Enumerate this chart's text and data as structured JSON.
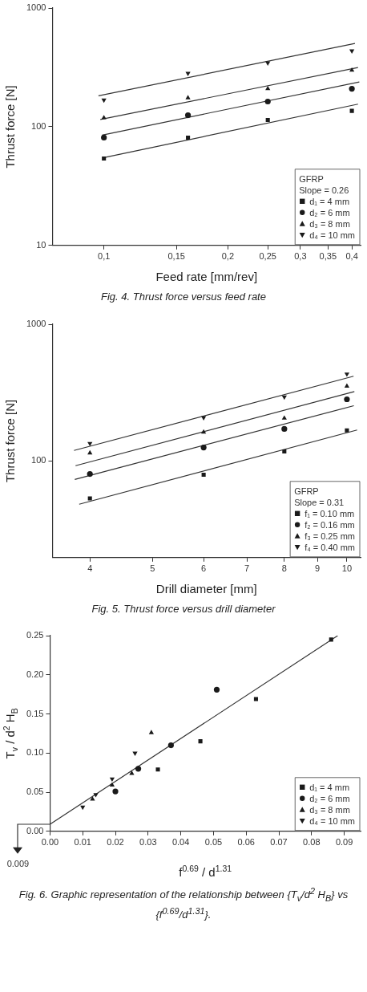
{
  "chart_data": [
    {
      "type": "scatter",
      "title": "Fig. 4. Thrust force versus feed rate",
      "xlabel": "Feed rate [mm/rev]",
      "ylabel": "Thrust force [N]",
      "legend_title": "GFRP",
      "annotations": [
        "Slope = 0.26"
      ],
      "log": "xy",
      "xlim": [
        0.075,
        0.42
      ],
      "ylim": [
        10,
        1000
      ],
      "xticks": [
        {
          "value": 0.1,
          "label": "0,1"
        },
        {
          "value": 0.15,
          "label": "0,15"
        },
        {
          "value": 0.2,
          "label": "0,2"
        },
        {
          "value": 0.25,
          "label": "0,25"
        },
        {
          "value": 0.3,
          "label": "0,3"
        },
        {
          "value": 0.35,
          "label": "0,35"
        },
        {
          "value": 0.4,
          "label": "0,4"
        }
      ],
      "yticks": [
        10,
        100,
        1000
      ],
      "legend": "bottom right",
      "series": [
        {
          "name": "d₁ = 4 mm",
          "color": "#1a1a1a",
          "marker": "square",
          "x": [
            0.1,
            0.16,
            0.25,
            0.4
          ],
          "values": [
            54,
            81,
            114,
            136
          ]
        },
        {
          "name": "d₂ = 6 mm",
          "color": "#1a1a1a",
          "marker": "circle",
          "x": [
            0.1,
            0.16,
            0.25,
            0.4
          ],
          "values": [
            81,
            125,
            163,
            209
          ]
        },
        {
          "name": "d₃ = 8 mm",
          "color": "#1a1a1a",
          "marker": "triangle",
          "x": [
            0.1,
            0.16,
            0.25,
            0.4
          ],
          "values": [
            119,
            175,
            209,
            299
          ]
        },
        {
          "name": "d₄ = 10 mm",
          "color": "#1a1a1a",
          "marker": "triangle-down",
          "x": [
            0.1,
            0.16,
            0.25,
            0.4
          ],
          "values": [
            168,
            282,
            345,
            436
          ]
        },
        {
          "type": "line",
          "color": "#333333",
          "marker": "none",
          "x": [
            0.1,
            0.414
          ],
          "values": [
            55,
            155
          ]
        },
        {
          "type": "line",
          "color": "#333333",
          "marker": "none",
          "x": [
            0.099,
            0.417
          ],
          "values": [
            85,
            238
          ]
        },
        {
          "type": "line",
          "color": "#333333",
          "marker": "none",
          "x": [
            0.098,
            0.414
          ],
          "values": [
            115,
            315
          ]
        },
        {
          "type": "line",
          "color": "#333333",
          "marker": "none",
          "x": [
            0.097,
            0.407
          ],
          "values": [
            182,
            503
          ]
        }
      ]
    },
    {
      "type": "scatter",
      "title": "Fig. 5. Thrust force versus drill diameter",
      "xlabel": "Drill diameter [mm]",
      "ylabel": "Thrust force [N]",
      "legend_title": "GFRP",
      "annotations": [
        "Slope = 0.31"
      ],
      "log": "xy",
      "xlim": [
        3.5,
        10.5
      ],
      "ylim": [
        19.5,
        1000
      ],
      "xticks": [
        4,
        5,
        6,
        7,
        8,
        9,
        10
      ],
      "yticks": [
        100,
        1000
      ],
      "legend": "bottom right",
      "series": [
        {
          "name": "f₁ = 0.10 mm",
          "color": "#1a1a1a",
          "marker": "square",
          "x": [
            4,
            6,
            8,
            10
          ],
          "values": [
            53,
            79,
            117,
            167
          ]
        },
        {
          "name": "f₂ = 0.16 mm",
          "color": "#1a1a1a",
          "marker": "circle",
          "x": [
            4,
            6,
            8,
            10
          ],
          "values": [
            80,
            125,
            171,
            282
          ]
        },
        {
          "name": "f₃ = 0.25 mm",
          "color": "#1a1a1a",
          "marker": "triangle",
          "x": [
            4,
            6,
            8,
            10
          ],
          "values": [
            114,
            162,
            205,
            352
          ]
        },
        {
          "name": "f₄ = 0.40 mm",
          "color": "#1a1a1a",
          "marker": "triangle-down",
          "x": [
            4,
            6,
            8,
            10
          ],
          "values": [
            134,
            207,
            293,
            432
          ]
        },
        {
          "type": "line",
          "color": "#333333",
          "marker": "none",
          "x": [
            3.85,
            10.37
          ],
          "values": [
            48,
            168
          ]
        },
        {
          "type": "line",
          "color": "#333333",
          "marker": "none",
          "x": [
            3.79,
            10.25
          ],
          "values": [
            73,
            253
          ]
        },
        {
          "type": "line",
          "color": "#333333",
          "marker": "none",
          "x": [
            3.8,
            10.27
          ],
          "values": [
            92,
            321
          ]
        },
        {
          "type": "line",
          "color": "#333333",
          "marker": "none",
          "x": [
            3.78,
            10.24
          ],
          "values": [
            119,
            416
          ]
        }
      ]
    },
    {
      "type": "scatter",
      "title": "Fig. 6. Graphic representation of the relationship between {T$_{v}$/d$^{2}$ H$_{B}$} vs {f$^{0.69}$/d$^{1.31}$}.",
      "xlabel": "f$^{0.69}$ / d$^{1.31}$",
      "ylabel": "T$_{v}$ / d$^{2}$ H$_{B}$",
      "annotations": [
        {
          "text": "0.009",
          "x": 0,
          "y": 0.009
        }
      ],
      "xlim": [
        0,
        0.095
      ],
      "ylim": [
        0,
        0.25
      ],
      "xticks": [
        {
          "value": 0,
          "label": "0.00"
        },
        {
          "value": 0.01,
          "label": "0.01"
        },
        {
          "value": 0.02,
          "label": "0.02"
        },
        {
          "value": 0.03,
          "label": "0.03"
        },
        {
          "value": 0.04,
          "label": "0.04"
        },
        {
          "value": 0.05,
          "label": "0.05"
        },
        {
          "value": 0.06,
          "label": "0.06"
        },
        {
          "value": 0.07,
          "label": "0.07"
        },
        {
          "value": 0.08,
          "label": "0.08"
        },
        {
          "value": 0.09,
          "label": "0.09"
        }
      ],
      "yticks": [
        {
          "value": 0,
          "label": "0.00"
        },
        {
          "value": 0.05,
          "label": "0.05"
        },
        {
          "value": 0.1,
          "label": "0.10"
        },
        {
          "value": 0.15,
          "label": "0.15"
        },
        {
          "value": 0.2,
          "label": "0.20"
        },
        {
          "value": 0.25,
          "label": "0.25"
        }
      ],
      "legend": "bottom right",
      "series": [
        {
          "name": "d₁ = 4 mm",
          "color": "#1a1a1a",
          "marker": "square",
          "x": [
            0.033,
            0.046,
            0.063,
            0.086
          ],
          "values": [
            0.079,
            0.115,
            0.169,
            0.245
          ]
        },
        {
          "name": "d₂ = 6 mm",
          "color": "#1a1a1a",
          "marker": "circle",
          "x": [
            0.02,
            0.027,
            0.037,
            0.051
          ],
          "values": [
            0.051,
            0.08,
            0.11,
            0.181
          ]
        },
        {
          "name": "d₃ = 8 mm",
          "color": "#1a1a1a",
          "marker": "triangle",
          "x": [
            0.013,
            0.019,
            0.025,
            0.031
          ],
          "values": [
            0.041,
            0.059,
            0.074,
            0.126
          ]
        },
        {
          "name": "d₄ = 10 mm",
          "color": "#1a1a1a",
          "marker": "triangle-down",
          "x": [
            0.01,
            0.014,
            0.019,
            0.026
          ],
          "values": [
            0.031,
            0.047,
            0.067,
            0.1
          ]
        },
        {
          "type": "line",
          "color": "#333333",
          "marker": "none",
          "x": [
            0,
            0.088
          ],
          "values": [
            0.009,
            0.25
          ]
        }
      ]
    }
  ]
}
